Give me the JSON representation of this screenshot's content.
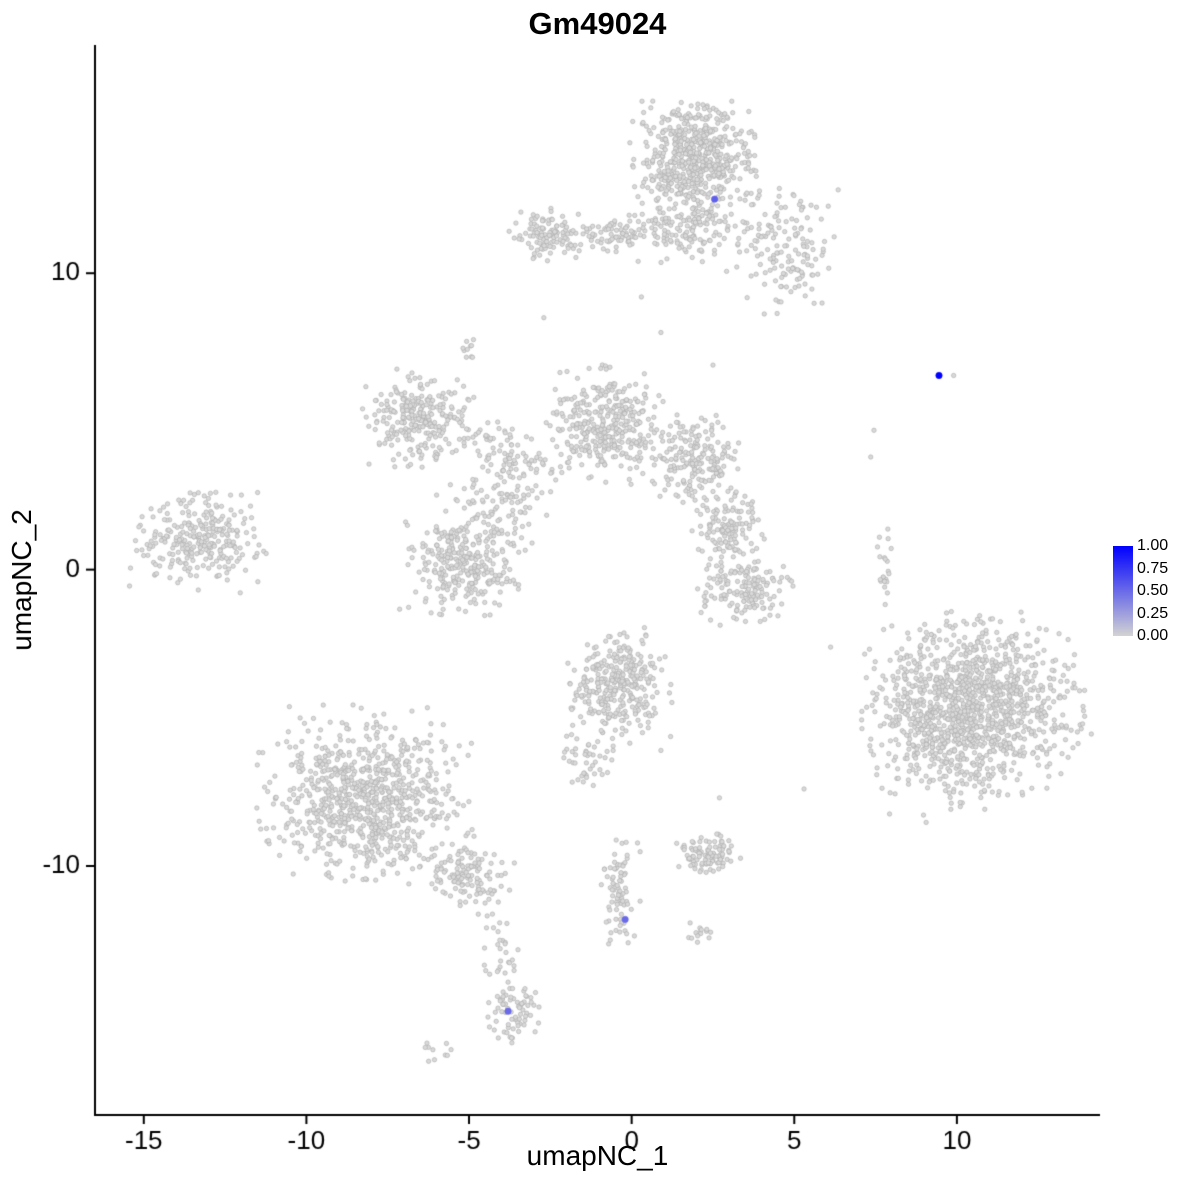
{
  "chart_data": {
    "type": "scatter",
    "title": "Gm49024",
    "xlabel": "umapNC_1",
    "ylabel": "umapNC_2",
    "xlim": [
      -16.5,
      14.4
    ],
    "ylim": [
      -18.4,
      17.7
    ],
    "grid": false,
    "background": "#FFFFFF",
    "axis_color": "#000000",
    "point_color_low": "#D3D3D3",
    "point_color_high": "#0000FF",
    "point_fill": "#D9D9D9",
    "point_stroke": "#ABABAB",
    "xticks": [
      {
        "value": -15,
        "label": "-15"
      },
      {
        "value": -10,
        "label": "-10"
      },
      {
        "value": -5,
        "label": "-5"
      },
      {
        "value": 0,
        "label": "0"
      },
      {
        "value": 5,
        "label": "5"
      },
      {
        "value": 10,
        "label": "10"
      }
    ],
    "yticks": [
      {
        "value": -10,
        "label": "-10"
      },
      {
        "value": 0,
        "label": "0"
      },
      {
        "value": 10,
        "label": "10"
      }
    ],
    "legend": {
      "position": "right",
      "ticks": [
        {
          "value": 1.0,
          "label": "1.00"
        },
        {
          "value": 0.75,
          "label": "0.75"
        },
        {
          "value": 0.5,
          "label": "0.50"
        },
        {
          "value": 0.25,
          "label": "0.25"
        },
        {
          "value": 0.0,
          "label": "0.00"
        }
      ]
    },
    "clusters": [
      {
        "name": "top-main",
        "cx": 1.9,
        "cy": 13.9,
        "sx": 0.85,
        "sy": 0.85,
        "n": 600,
        "rot": 0
      },
      {
        "name": "top-main-lower-fringe",
        "cx": 1.9,
        "cy": 11.5,
        "sx": 0.95,
        "sy": 0.5,
        "n": 150,
        "rot": 0
      },
      {
        "name": "top-right-sparse",
        "cx": 4.7,
        "cy": 10.9,
        "sx": 0.75,
        "sy": 0.95,
        "n": 150,
        "rot": 0
      },
      {
        "name": "top-left-blob",
        "cx": -2.45,
        "cy": 11.3,
        "sx": 0.55,
        "sy": 0.38,
        "n": 120,
        "rot": 0
      },
      {
        "name": "top-left-arm",
        "cx": -0.4,
        "cy": 11.3,
        "sx": 0.5,
        "sy": 0.3,
        "n": 70,
        "rot": 0
      },
      {
        "name": "mid-left-ring",
        "cx": -6.6,
        "cy": 5.1,
        "sx": 0.75,
        "sy": 0.7,
        "n": 260,
        "rot": 0
      },
      {
        "name": "mid-left-trail",
        "cx": -4.1,
        "cy": 4.1,
        "sx": 0.7,
        "sy": 0.4,
        "n": 70,
        "rot": -0.4
      },
      {
        "name": "mid-center",
        "cx": -0.75,
        "cy": 4.9,
        "sx": 0.8,
        "sy": 0.85,
        "n": 360,
        "rot": 0
      },
      {
        "name": "mid-center-right",
        "cx": 1.95,
        "cy": 3.7,
        "sx": 0.6,
        "sy": 0.75,
        "n": 200,
        "rot": 0
      },
      {
        "name": "diag-strand",
        "cx": -3.9,
        "cy": 2.5,
        "sx": 0.85,
        "sy": 0.6,
        "n": 100,
        "rot": 0.5
      },
      {
        "name": "far-left",
        "cx": -13.3,
        "cy": 1.0,
        "sx": 0.9,
        "sy": 0.8,
        "n": 280,
        "rot": 0
      },
      {
        "name": "left-lower",
        "cx": -5.1,
        "cy": 0.2,
        "sx": 0.85,
        "sy": 0.75,
        "n": 320,
        "rot": 0
      },
      {
        "name": "right-center-upper",
        "cx": 2.95,
        "cy": 1.4,
        "sx": 0.5,
        "sy": 0.55,
        "n": 120,
        "rot": 0
      },
      {
        "name": "right-center-lower",
        "cx": 3.45,
        "cy": -0.7,
        "sx": 0.65,
        "sy": 0.55,
        "n": 160,
        "rot": 0
      },
      {
        "name": "center-bottom",
        "cx": -0.4,
        "cy": -3.9,
        "sx": 0.7,
        "sy": 0.85,
        "n": 330,
        "rot": 0
      },
      {
        "name": "center-bottom-tail",
        "cx": -1.35,
        "cy": -6.5,
        "sx": 0.4,
        "sy": 0.45,
        "n": 45,
        "rot": 0
      },
      {
        "name": "right-big",
        "cx": 10.45,
        "cy": -4.7,
        "sx": 1.5,
        "sy": 1.4,
        "n": 1300,
        "rot": 0.3
      },
      {
        "name": "bottom-left-big",
        "cx": -8.2,
        "cy": -7.65,
        "sx": 1.4,
        "sy": 1.3,
        "n": 850,
        "rot": 0
      },
      {
        "name": "bottom-left-tail",
        "cx": -5.1,
        "cy": -10.3,
        "sx": 0.65,
        "sy": 0.5,
        "n": 130,
        "rot": -0.45
      },
      {
        "name": "tail-trail",
        "cx": -4.05,
        "cy": -12.8,
        "sx": 0.25,
        "sy": 0.8,
        "n": 30,
        "rot": 0
      },
      {
        "name": "bottom-strand",
        "cx": -0.43,
        "cy": -10.9,
        "sx": 0.3,
        "sy": 0.75,
        "n": 80,
        "rot": 0
      },
      {
        "name": "bottom-right-small",
        "cx": 2.3,
        "cy": -9.6,
        "sx": 0.45,
        "sy": 0.3,
        "n": 100,
        "rot": 0
      },
      {
        "name": "bottom-right-tiny",
        "cx": 2.2,
        "cy": -12.3,
        "sx": 0.2,
        "sy": 0.18,
        "n": 14,
        "rot": 0
      },
      {
        "name": "bottom-small",
        "cx": -3.65,
        "cy": -14.8,
        "sx": 0.35,
        "sy": 0.55,
        "n": 75,
        "rot": 0
      },
      {
        "name": "bottom-tiny",
        "cx": -5.9,
        "cy": -16.2,
        "sx": 0.25,
        "sy": 0.18,
        "n": 10,
        "rot": 0
      },
      {
        "name": "right-strand",
        "cx": 7.77,
        "cy": 0.0,
        "sx": 0.12,
        "sy": 0.7,
        "n": 22,
        "rot": 0
      },
      {
        "name": "upper-small",
        "cx": -4.9,
        "cy": 7.35,
        "sx": 0.22,
        "sy": 0.2,
        "n": 10,
        "rot": 0
      }
    ],
    "outliers": [
      [
        7.45,
        4.7
      ],
      [
        7.35,
        3.8
      ],
      [
        9.9,
        6.55
      ],
      [
        -2.7,
        8.5
      ],
      [
        0.3,
        9.2
      ],
      [
        0.9,
        8.0
      ],
      [
        2.5,
        6.9
      ],
      [
        8.0,
        -1.9
      ],
      [
        5.3,
        -7.4
      ],
      [
        2.7,
        -7.7
      ],
      [
        0.2,
        10.4
      ],
      [
        0.9,
        -6.1
      ],
      [
        -11.5,
        2.6
      ]
    ],
    "highlights": [
      {
        "x": 2.55,
        "y": 12.5,
        "value": 0.55
      },
      {
        "x": 9.45,
        "y": 6.55,
        "value": 1.0
      },
      {
        "x": -0.2,
        "y": -11.8,
        "value": 0.5
      },
      {
        "x": -3.8,
        "y": -14.9,
        "value": 0.5
      }
    ]
  }
}
